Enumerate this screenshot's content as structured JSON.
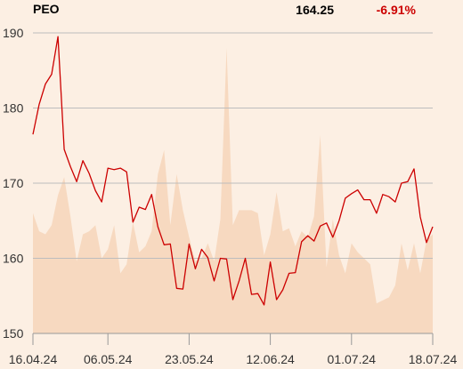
{
  "header": {
    "ticker": "PEO",
    "price": "164.25",
    "change": "-6.91%"
  },
  "colors": {
    "background": "#fcefe3",
    "price_line": "#cc0000",
    "volume_area": "#f7d9c0",
    "grid": "#bdbdbd",
    "change_negative": "#cc0000"
  },
  "chart_data": {
    "type": "line",
    "title": "",
    "xlabel": "",
    "ylabel": "",
    "ylim": [
      150,
      190
    ],
    "y_ticks": [
      150,
      160,
      170,
      180,
      190
    ],
    "x_tick_labels": [
      "16.04.24",
      "06.05.24",
      "23.05.24",
      "12.06.24",
      "01.07.24",
      "18.07.24"
    ],
    "x_tick_index": [
      0,
      12,
      25,
      38,
      51,
      64
    ],
    "grid": "horizontal",
    "series": [
      {
        "kind": "price",
        "values": [
          176.5,
          180.5,
          183.2,
          184.5,
          189.5,
          174.5,
          172.2,
          170.2,
          173.0,
          171.3,
          169.0,
          167.5,
          172.0,
          171.8,
          172.0,
          171.5,
          164.8,
          166.8,
          166.5,
          168.5,
          164.2,
          161.8,
          161.9,
          156.0,
          155.9,
          161.9,
          158.6,
          161.2,
          160.1,
          157.0,
          160.0,
          159.9,
          154.5,
          157.0,
          160.0,
          155.2,
          155.3,
          153.8,
          159.5,
          154.5,
          155.8,
          158.0,
          158.1,
          162.2,
          163.0,
          162.3,
          164.3,
          164.7,
          162.8,
          165.0,
          168.0,
          168.6,
          169.1,
          167.8,
          167.8,
          166.0,
          168.5,
          168.2,
          167.5,
          170.0,
          170.2,
          171.9,
          165.5,
          162.1,
          164.2
        ]
      },
      {
        "kind": "volume",
        "values": [
          0.4,
          0.34,
          0.33,
          0.36,
          0.46,
          0.52,
          0.39,
          0.24,
          0.33,
          0.34,
          0.36,
          0.25,
          0.28,
          0.36,
          0.2,
          0.23,
          0.37,
          0.27,
          0.29,
          0.34,
          0.53,
          0.61,
          0.36,
          0.53,
          0.41,
          0.32,
          0.24,
          0.25,
          0.3,
          0.24,
          0.38,
          0.95,
          0.36,
          0.41,
          0.41,
          0.41,
          0.4,
          0.26,
          0.33,
          0.47,
          0.34,
          0.35,
          0.29,
          0.34,
          0.32,
          0.39,
          0.66,
          0.22,
          0.38,
          0.26,
          0.2,
          0.3,
          0.27,
          0.25,
          0.23,
          0.1,
          0.11,
          0.12,
          0.16,
          0.3,
          0.21,
          0.3,
          0.2,
          0.31,
          0.33
        ]
      }
    ]
  }
}
